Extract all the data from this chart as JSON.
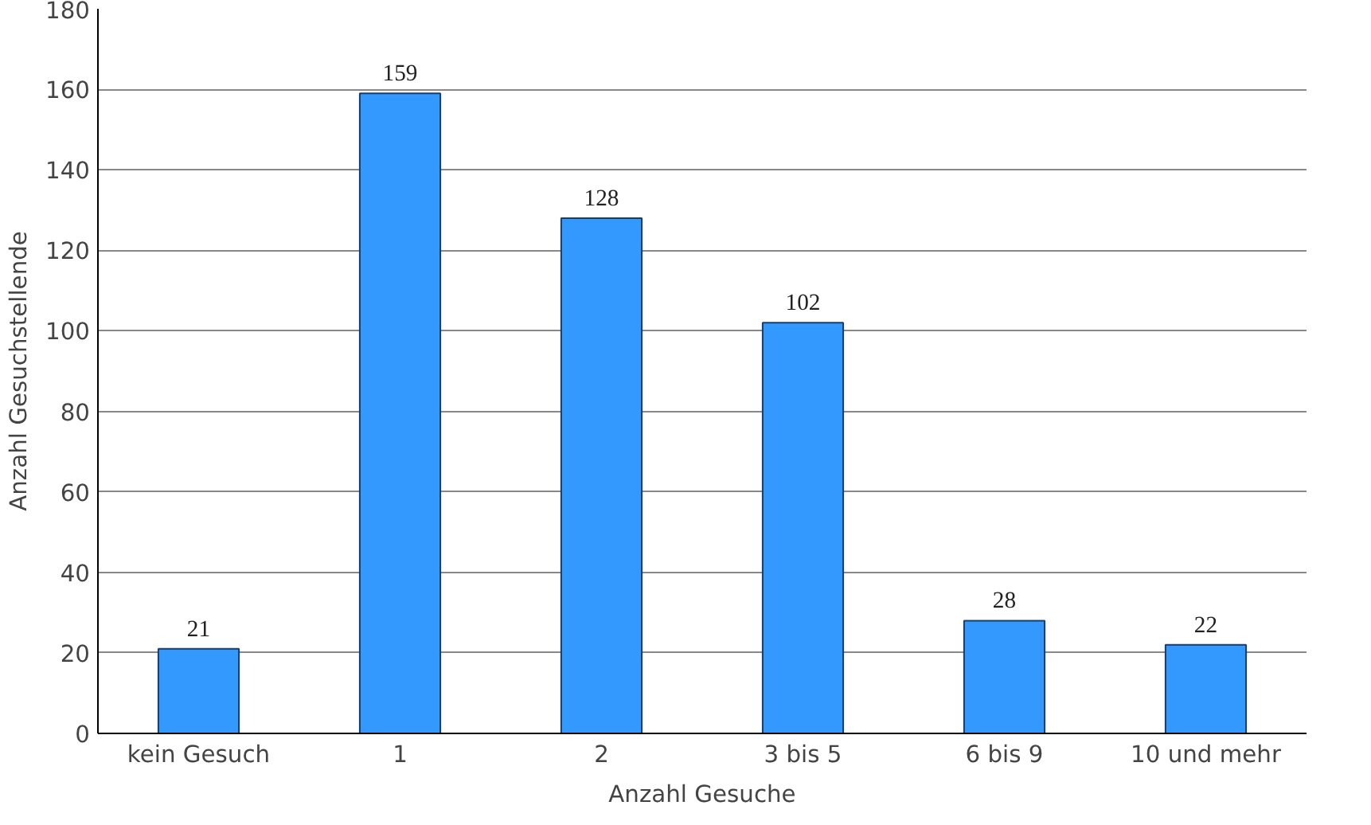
{
  "chart_data": {
    "type": "bar",
    "xlabel": "Anzahl Gesuche",
    "ylabel": "Anzahl Gesuchstellende",
    "categories": [
      "kein Gesuch",
      "1",
      "2",
      "3 bis 5",
      "6 bis 9",
      "10 und mehr"
    ],
    "values": [
      21,
      159,
      128,
      102,
      28,
      22
    ],
    "color": "#3399ff",
    "ylim": [
      0,
      180
    ],
    "yticks": [
      0,
      20,
      40,
      60,
      80,
      100,
      120,
      140,
      160,
      180
    ],
    "grid": "y",
    "data_labels": true
  }
}
